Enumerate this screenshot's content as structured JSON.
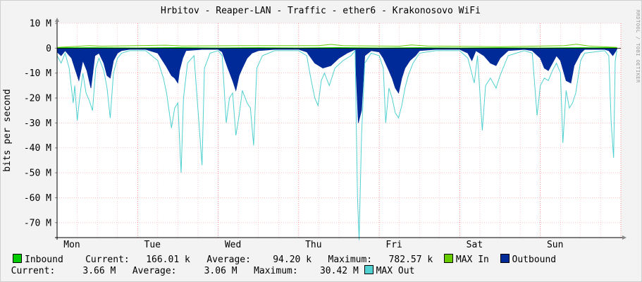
{
  "chart_data": {
    "type": "area",
    "title": "Hrbitov - Reaper-LAN - Traffic - ether6 - Krakonosovo WiFi",
    "ylabel": "bits per second",
    "xlabel": "",
    "ylim": [
      -76,
      10
    ],
    "y_ticks": [
      {
        "value": 10,
        "label": "10 M"
      },
      {
        "value": 0,
        "label": "0"
      },
      {
        "value": -10,
        "label": "-10 M"
      },
      {
        "value": -20,
        "label": "-20 M"
      },
      {
        "value": -30,
        "label": "-30 M"
      },
      {
        "value": -40,
        "label": "-40 M"
      },
      {
        "value": -50,
        "label": "-50 M"
      },
      {
        "value": -60,
        "label": "-60 M"
      },
      {
        "value": -70,
        "label": "-70 M"
      }
    ],
    "x_ticks": [
      "Mon",
      "Tue",
      "Wed",
      "Thu",
      "Fri",
      "Sat",
      "Sun"
    ],
    "grid": true,
    "x_unit": "day index (0 = Monday)",
    "y_unit": "Mbit/s (outbound drawn negative)",
    "series": [
      {
        "name": "Outbound",
        "color": "#002a97",
        "points": [
          [
            0.0,
            -1.5
          ],
          [
            0.05,
            -3
          ],
          [
            0.1,
            -1
          ],
          [
            0.18,
            -4
          ],
          [
            0.22,
            -8
          ],
          [
            0.27,
            -13
          ],
          [
            0.32,
            -5
          ],
          [
            0.37,
            -9
          ],
          [
            0.42,
            -16
          ],
          [
            0.47,
            -3
          ],
          [
            0.52,
            -2
          ],
          [
            0.58,
            -6
          ],
          [
            0.62,
            -11
          ],
          [
            0.66,
            -12
          ],
          [
            0.7,
            -5
          ],
          [
            0.75,
            -2
          ],
          [
            0.8,
            -1
          ],
          [
            0.9,
            -0.5
          ],
          [
            1.1,
            -0.5
          ],
          [
            1.25,
            -2
          ],
          [
            1.35,
            -7
          ],
          [
            1.42,
            -11
          ],
          [
            1.46,
            -12
          ],
          [
            1.5,
            -14
          ],
          [
            1.52,
            -9
          ],
          [
            1.56,
            -4
          ],
          [
            1.6,
            -1
          ],
          [
            1.8,
            -0.5
          ],
          [
            2.0,
            -0.5
          ],
          [
            2.05,
            -1.5
          ],
          [
            2.12,
            -8
          ],
          [
            2.18,
            -13
          ],
          [
            2.22,
            -17
          ],
          [
            2.26,
            -11
          ],
          [
            2.3,
            -8
          ],
          [
            2.36,
            -4
          ],
          [
            2.42,
            -2
          ],
          [
            2.5,
            -1
          ],
          [
            2.7,
            -0.5
          ],
          [
            3.0,
            -0.5
          ],
          [
            3.1,
            -1.5
          ],
          [
            3.2,
            -6
          ],
          [
            3.3,
            -8
          ],
          [
            3.4,
            -7
          ],
          [
            3.5,
            -4
          ],
          [
            3.6,
            -2
          ],
          [
            3.7,
            -0.5
          ],
          [
            3.74,
            -30
          ],
          [
            3.78,
            -25
          ],
          [
            3.82,
            -3
          ],
          [
            3.9,
            -1
          ],
          [
            4.0,
            -1.5
          ],
          [
            4.05,
            -4
          ],
          [
            4.12,
            -9
          ],
          [
            4.16,
            -12
          ],
          [
            4.2,
            -16
          ],
          [
            4.24,
            -18
          ],
          [
            4.28,
            -12
          ],
          [
            4.32,
            -8
          ],
          [
            4.38,
            -5
          ],
          [
            4.45,
            -3
          ],
          [
            4.5,
            -1
          ],
          [
            4.7,
            -0.5
          ],
          [
            5.0,
            -0.5
          ],
          [
            5.1,
            -2
          ],
          [
            5.15,
            -5
          ],
          [
            5.2,
            -1
          ],
          [
            5.3,
            -3
          ],
          [
            5.38,
            -6
          ],
          [
            5.45,
            -7
          ],
          [
            5.5,
            -4
          ],
          [
            5.6,
            -1
          ],
          [
            5.8,
            -0.5
          ],
          [
            5.9,
            -1
          ],
          [
            6.0,
            -4
          ],
          [
            6.05,
            -8
          ],
          [
            6.1,
            -9
          ],
          [
            6.15,
            -6
          ],
          [
            6.2,
            -3
          ],
          [
            6.25,
            -5
          ],
          [
            6.32,
            -13
          ],
          [
            6.38,
            -14
          ],
          [
            6.42,
            -7
          ],
          [
            6.5,
            -2
          ],
          [
            6.55,
            -0.5
          ],
          [
            6.8,
            -0.5
          ],
          [
            6.85,
            -1
          ],
          [
            6.9,
            -3
          ],
          [
            6.95,
            -0.5
          ]
        ]
      },
      {
        "name": "MAX Out",
        "color": "#50d0d0",
        "points": [
          [
            0.0,
            -3
          ],
          [
            0.05,
            -6
          ],
          [
            0.1,
            -2
          ],
          [
            0.15,
            -8
          ],
          [
            0.2,
            -22
          ],
          [
            0.22,
            -15
          ],
          [
            0.25,
            -29
          ],
          [
            0.28,
            -20
          ],
          [
            0.32,
            -10
          ],
          [
            0.36,
            -18
          ],
          [
            0.4,
            -21
          ],
          [
            0.44,
            -25
          ],
          [
            0.48,
            -8
          ],
          [
            0.52,
            -4
          ],
          [
            0.58,
            -9
          ],
          [
            0.62,
            -16
          ],
          [
            0.66,
            -28
          ],
          [
            0.7,
            -10
          ],
          [
            0.75,
            -4
          ],
          [
            0.8,
            -2
          ],
          [
            0.9,
            -1
          ],
          [
            1.1,
            -1
          ],
          [
            1.25,
            -5
          ],
          [
            1.32,
            -12
          ],
          [
            1.36,
            -18
          ],
          [
            1.42,
            -32
          ],
          [
            1.46,
            -24
          ],
          [
            1.5,
            -22
          ],
          [
            1.54,
            -50
          ],
          [
            1.57,
            -20
          ],
          [
            1.62,
            -6
          ],
          [
            1.7,
            -3
          ],
          [
            1.8,
            -47
          ],
          [
            1.83,
            -8
          ],
          [
            1.9,
            -2
          ],
          [
            2.0,
            -1
          ],
          [
            2.05,
            -3
          ],
          [
            2.1,
            -30
          ],
          [
            2.14,
            -20
          ],
          [
            2.18,
            -18
          ],
          [
            2.22,
            -35
          ],
          [
            2.26,
            -27
          ],
          [
            2.3,
            -17
          ],
          [
            2.36,
            -22
          ],
          [
            2.4,
            -24
          ],
          [
            2.44,
            -39
          ],
          [
            2.48,
            -8
          ],
          [
            2.55,
            -3
          ],
          [
            2.7,
            -1
          ],
          [
            3.0,
            -1
          ],
          [
            3.1,
            -3
          ],
          [
            3.15,
            -12
          ],
          [
            3.2,
            -20
          ],
          [
            3.24,
            -23
          ],
          [
            3.28,
            -13
          ],
          [
            3.32,
            -10
          ],
          [
            3.38,
            -15
          ],
          [
            3.45,
            -8
          ],
          [
            3.55,
            -5
          ],
          [
            3.65,
            -3
          ],
          [
            3.7,
            -1
          ],
          [
            3.73,
            -60
          ],
          [
            3.75,
            -77
          ],
          [
            3.78,
            -35
          ],
          [
            3.82,
            -6
          ],
          [
            3.9,
            -2
          ],
          [
            4.0,
            -3
          ],
          [
            4.05,
            -8
          ],
          [
            4.08,
            -30
          ],
          [
            4.12,
            -16
          ],
          [
            4.16,
            -20
          ],
          [
            4.2,
            -26
          ],
          [
            4.24,
            -28
          ],
          [
            4.28,
            -23
          ],
          [
            4.32,
            -16
          ],
          [
            4.36,
            -11
          ],
          [
            4.42,
            -6
          ],
          [
            4.5,
            -2
          ],
          [
            4.7,
            -1
          ],
          [
            5.0,
            -1
          ],
          [
            5.1,
            -4
          ],
          [
            5.18,
            -14
          ],
          [
            5.22,
            -3
          ],
          [
            5.28,
            -33
          ],
          [
            5.32,
            -15
          ],
          [
            5.38,
            -12
          ],
          [
            5.45,
            -16
          ],
          [
            5.5,
            -11
          ],
          [
            5.6,
            -3
          ],
          [
            5.8,
            -1
          ],
          [
            5.9,
            -2
          ],
          [
            5.96,
            -27
          ],
          [
            6.0,
            -15
          ],
          [
            6.05,
            -12
          ],
          [
            6.1,
            -13
          ],
          [
            6.15,
            -9
          ],
          [
            6.2,
            -6
          ],
          [
            6.25,
            -10
          ],
          [
            6.28,
            -38
          ],
          [
            6.32,
            -17
          ],
          [
            6.36,
            -24
          ],
          [
            6.4,
            -22
          ],
          [
            6.44,
            -18
          ],
          [
            6.5,
            -5
          ],
          [
            6.55,
            -2
          ],
          [
            6.8,
            -1
          ],
          [
            6.85,
            -3
          ],
          [
            6.88,
            -30
          ],
          [
            6.91,
            -44
          ],
          [
            6.93,
            -5
          ],
          [
            6.95,
            -1
          ]
        ]
      },
      {
        "name": "Inbound",
        "color": "#00cc00",
        "points": [
          [
            0.0,
            0.15
          ],
          [
            0.5,
            0.2
          ],
          [
            1.0,
            0.1
          ],
          [
            1.5,
            0.25
          ],
          [
            2.0,
            0.1
          ],
          [
            2.5,
            0.2
          ],
          [
            3.0,
            0.1
          ],
          [
            3.5,
            0.25
          ],
          [
            4.0,
            0.1
          ],
          [
            4.5,
            0.2
          ],
          [
            5.0,
            0.1
          ],
          [
            5.5,
            0.15
          ],
          [
            6.0,
            0.1
          ],
          [
            6.5,
            0.2
          ],
          [
            6.95,
            0.15
          ]
        ]
      },
      {
        "name": "MAX In",
        "color": "#66cc00",
        "points": [
          [
            0.0,
            0.3
          ],
          [
            0.4,
            1.0
          ],
          [
            0.55,
            0.8
          ],
          [
            1.35,
            1.2
          ],
          [
            1.55,
            0.9
          ],
          [
            2.25,
            1.0
          ],
          [
            2.55,
            1.0
          ],
          [
            3.25,
            1.0
          ],
          [
            3.4,
            1.5
          ],
          [
            3.55,
            1.0
          ],
          [
            4.25,
            0.8
          ],
          [
            4.4,
            1.3
          ],
          [
            4.6,
            0.9
          ],
          [
            5.2,
            0.7
          ],
          [
            5.5,
            0.6
          ],
          [
            6.3,
            1.0
          ],
          [
            6.45,
            1.6
          ],
          [
            6.6,
            0.9
          ],
          [
            6.95,
            0.3
          ]
        ]
      }
    ]
  },
  "legend": {
    "inbound_label": "Inbound",
    "inbound_current": "Current:   166.01 k",
    "inbound_average": "Average:    94.20 k",
    "inbound_maximum": "Maximum:   782.57 k",
    "max_in_label": "MAX In",
    "outbound_label": "Outbound",
    "outbound_current": "Current:     3.66 M",
    "outbound_average": "Average:     3.06 M",
    "outbound_maximum": "Maximum:    30.42 M",
    "max_out_label": "MAX Out"
  },
  "watermark": "RRDTOOL / TOBI OETIKER",
  "colors": {
    "background": "#f3f3f3",
    "plot_background": "#ffffff",
    "grid": "#ff9c9c",
    "axis": "#000000"
  }
}
